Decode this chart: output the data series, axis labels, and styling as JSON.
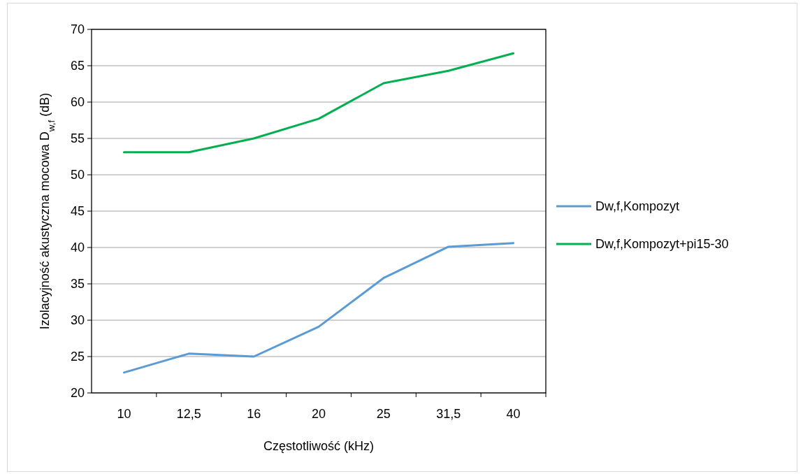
{
  "chart_data": {
    "type": "line",
    "xlabel": "Częstotliwość  (kHz)",
    "ylabel": "Izolacyjność akustyczna mocowa D$_{w,f}$ (dB)",
    "categories": [
      "10",
      "12,5",
      "16",
      "20",
      "25",
      "31,5",
      "40"
    ],
    "series": [
      {
        "name": "Dw,f,Kompozyt",
        "color": "#5b9bd5",
        "values": [
          22.8,
          25.4,
          25.0,
          29.1,
          35.8,
          40.1,
          40.6
        ]
      },
      {
        "name": "Dw,f,Kompozyt+pi15-30",
        "color": "#00b050",
        "values": [
          53.1,
          53.1,
          55.0,
          57.7,
          62.6,
          64.3,
          66.7
        ]
      }
    ],
    "ylim": [
      20,
      70
    ],
    "yticks": [
      20,
      25,
      30,
      35,
      40,
      45,
      50,
      55,
      60,
      65,
      70
    ],
    "grid": "y",
    "legend": "right",
    "marker": "none",
    "line_style": "solid"
  }
}
